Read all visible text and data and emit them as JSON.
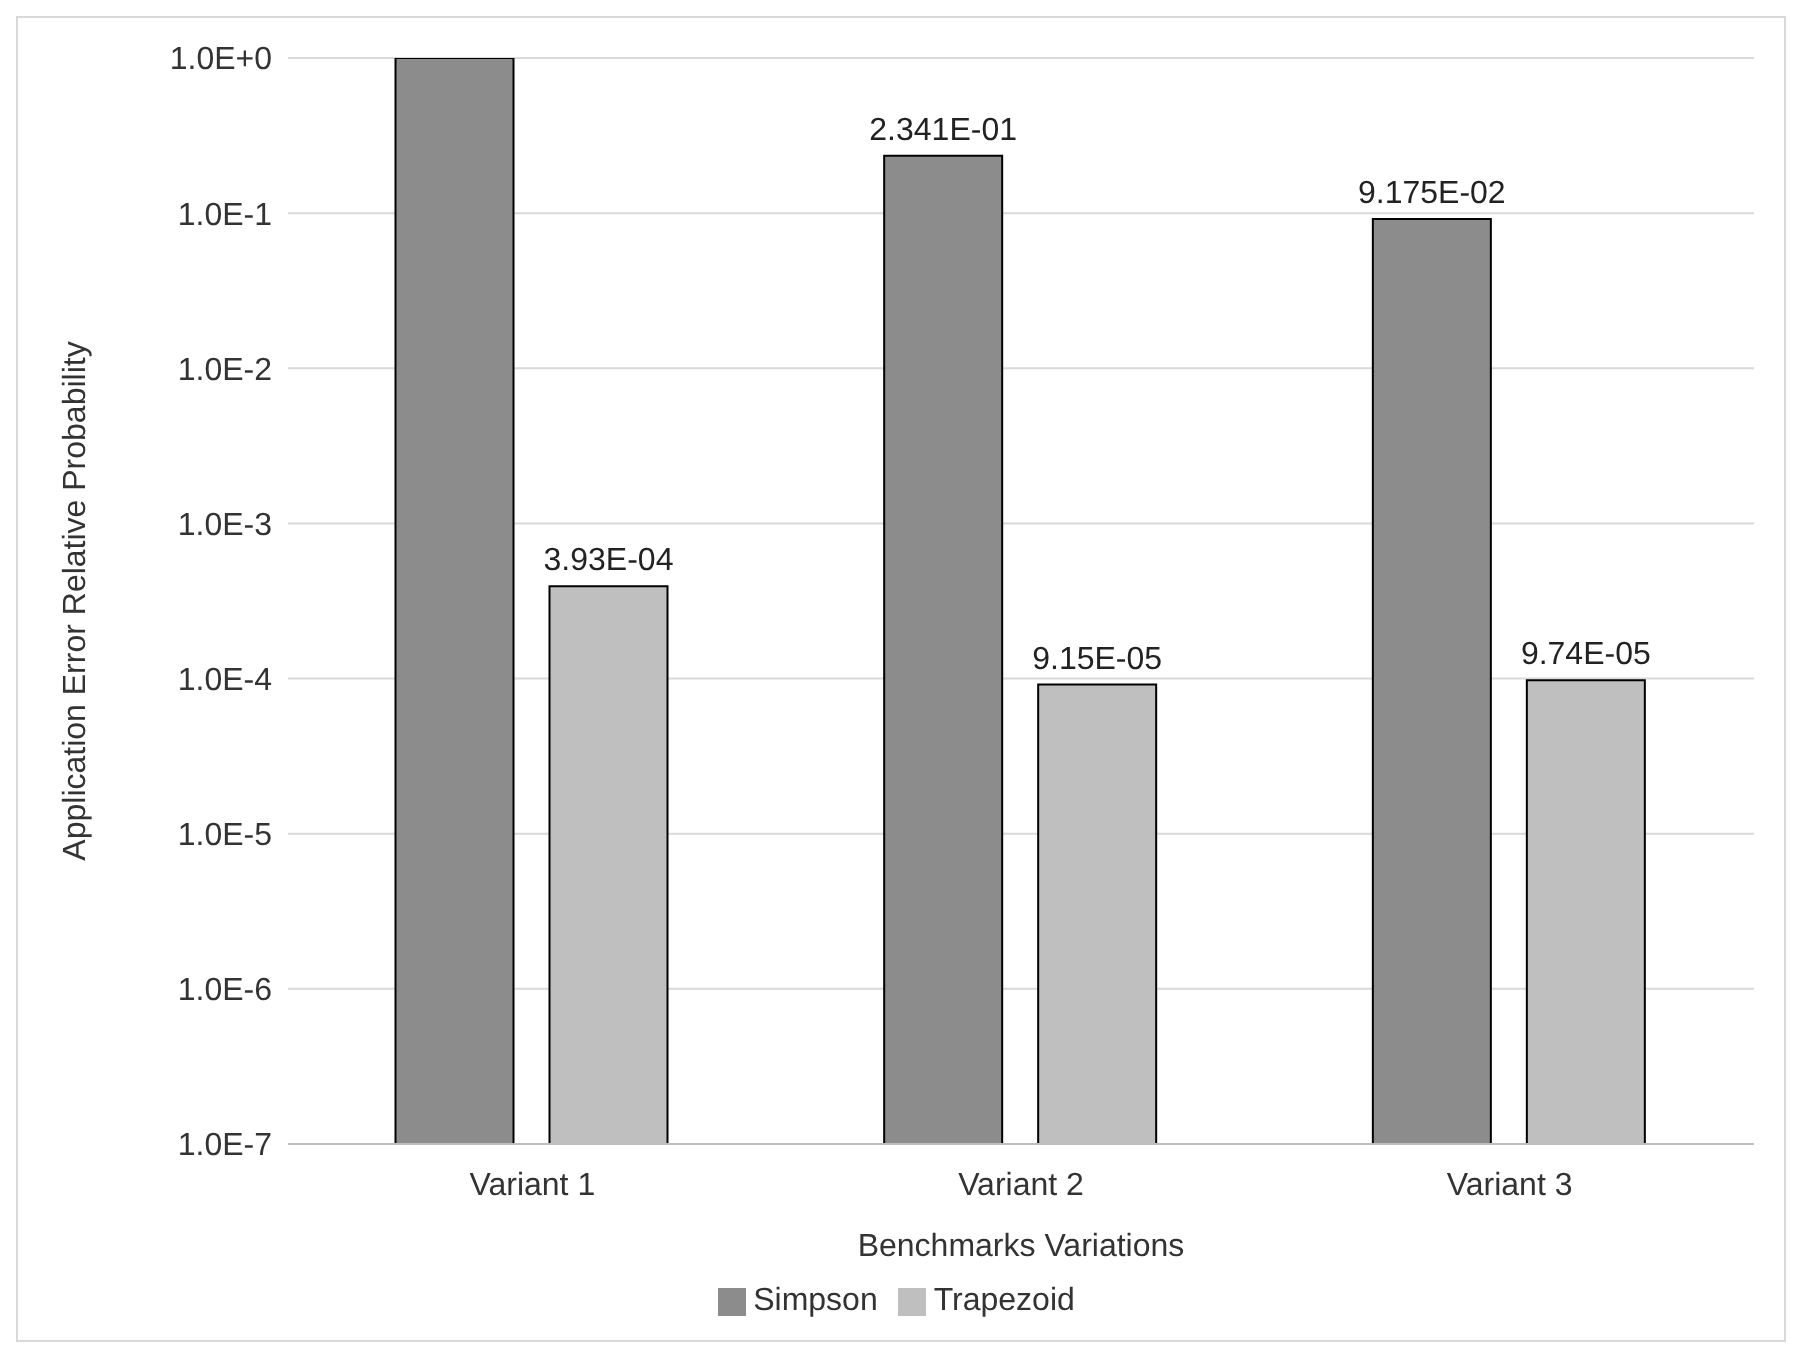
{
  "chart_data": {
    "type": "bar",
    "xlabel": "Benchmarks Variations",
    "ylabel": "Application Error Relative Probability",
    "categories": [
      "Variant 1",
      "Variant 2",
      "Variant 3"
    ],
    "series": [
      {
        "name": "Simpson",
        "color": "#8c8c8c",
        "values": [
          1.0,
          0.2341,
          0.09175
        ],
        "value_labels": [
          null,
          "2.341E-01",
          "9.175E-02"
        ]
      },
      {
        "name": "Trapezoid",
        "color": "#bfbfbf",
        "values": [
          0.000393,
          9.15e-05,
          9.74e-05
        ],
        "value_labels": [
          "3.93E-04",
          "9.15E-05",
          "9.74E-05"
        ]
      }
    ],
    "log": "y",
    "ylim": [
      1e-07,
      1
    ],
    "yticks": [
      {
        "value": 1e-07,
        "label": "1.0E-7"
      },
      {
        "value": 1e-06,
        "label": "1.0E-6"
      },
      {
        "value": 1e-05,
        "label": "1.0E-5"
      },
      {
        "value": 0.0001,
        "label": "1.0E-4"
      },
      {
        "value": 0.001,
        "label": "1.0E-3"
      },
      {
        "value": 0.01,
        "label": "1.0E-2"
      },
      {
        "value": 0.1,
        "label": "1.0E-1"
      },
      {
        "value": 1,
        "label": "1.0E+0"
      }
    ],
    "grid": "y",
    "legend": "bottom"
  }
}
